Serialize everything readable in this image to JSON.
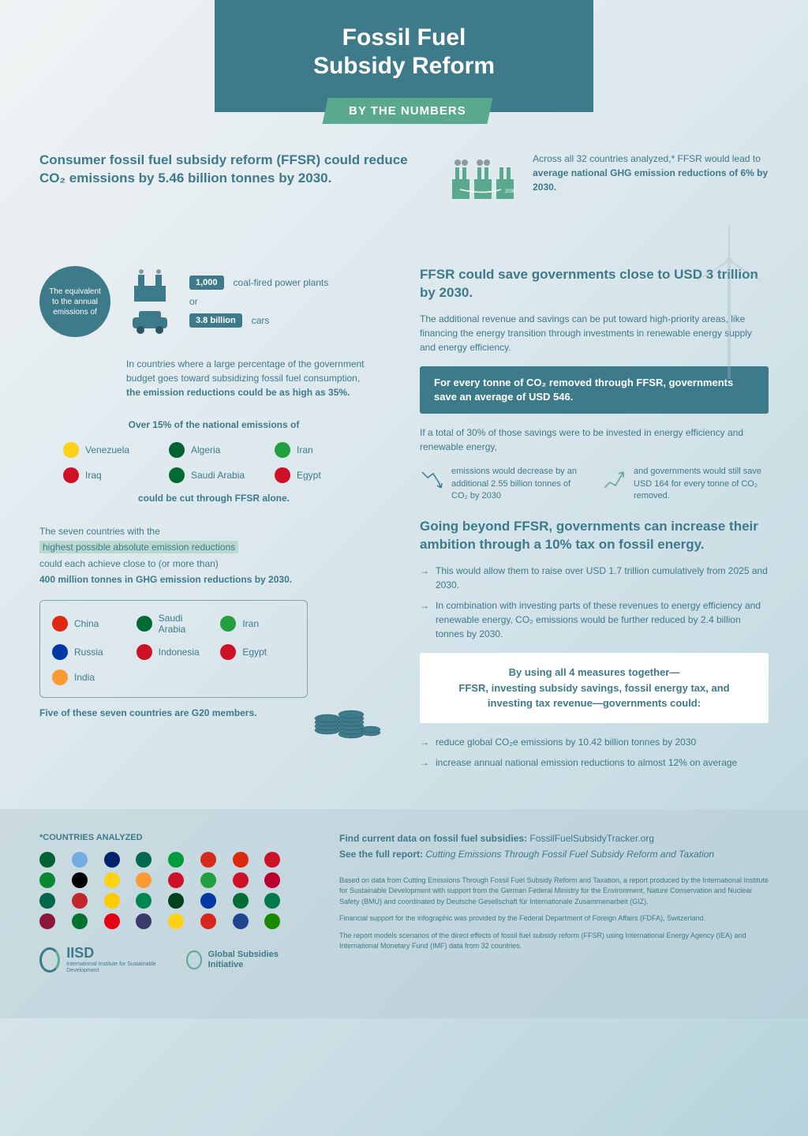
{
  "header": {
    "title_line1": "Fossil Fuel",
    "title_line2": "Subsidy Reform",
    "subtitle": "BY THE NUMBERS"
  },
  "top": {
    "left_headline": "Consumer fossil fuel subsidy reform (FFSR) could reduce CO₂ emissions by 5.46 billion tonnes by 2030.",
    "right_pre": "Across all 32 countries analyzed,* FFSR would lead to",
    "right_bold": "average national GHG emission reductions of 6% by 2030."
  },
  "equiv": {
    "badge": "The equivalent to the annual emissions of",
    "val1": "1,000",
    "label1": "coal-fired power plants",
    "or": "or",
    "val2": "3.8 billion",
    "label2": "cars"
  },
  "note": {
    "pre": "In countries where a large percentage of the government budget goes toward subsidizing fossil fuel consumption, ",
    "bold": "the emission reductions could be as high as 35%."
  },
  "countries15": {
    "title": "Over 15% of the national emissions of",
    "footer": "could be cut through FFSR alone.",
    "items": [
      {
        "name": "Venezuela",
        "color": "#fcd116"
      },
      {
        "name": "Algeria",
        "color": "#006233"
      },
      {
        "name": "Iran",
        "color": "#239f40"
      },
      {
        "name": "Iraq",
        "color": "#ce1126"
      },
      {
        "name": "Saudi Arabia",
        "color": "#006c35"
      },
      {
        "name": "Egypt",
        "color": "#ce1126"
      }
    ]
  },
  "seven": {
    "line1": "The seven countries with the",
    "highlight": "highest possible absolute emission reductions",
    "line2": "could each achieve close to (or more than)",
    "line3": "400 million tonnes in GHG emission reductions by 2030.",
    "footer": "Five of these seven countries are G20 members.",
    "items": [
      {
        "name": "China",
        "color": "#de2910"
      },
      {
        "name": "Saudi Arabia",
        "color": "#006c35"
      },
      {
        "name": "Iran",
        "color": "#239f40"
      },
      {
        "name": "Russia",
        "color": "#0039a6"
      },
      {
        "name": "Indonesia",
        "color": "#ce1126"
      },
      {
        "name": "Egypt",
        "color": "#ce1126"
      },
      {
        "name": "India",
        "color": "#ff9933"
      }
    ]
  },
  "right": {
    "h1": "FFSR could save governments close to USD 3 trillion by 2030.",
    "p1": "The additional revenue and savings can be put toward high-priority areas, like financing the energy transition through investments in renewable energy supply and energy efficiency.",
    "banner1": "For every tonne of CO₂ removed through FFSR, governments save an average of USD 546.",
    "p2": "If a total of 30% of those savings were to be invested in energy efficiency and renewable energy,",
    "split1": "emissions would decrease by an additional 2.55 billion tonnes of CO₂ by 2030",
    "split2": "and governments would still save USD 164 for every tonne of CO₂ removed.",
    "h2": "Going beyond FFSR, governments can increase their ambition through a 10% tax on fossil energy.",
    "bullet1": "This would allow them to raise over USD 1.7 trillion cumulatively from 2025 and 2030.",
    "bullet2": "In combination with investing parts of these revenues to energy efficiency and renewable energy, CO₂ emissions would be further reduced by 2.4 billion tonnes by 2030.",
    "box_line1": "By using all 4 measures together—",
    "box_line2": "FFSR, investing subsidy savings, fossil energy tax, and investing tax revenue—governments could:",
    "bullet3": "reduce global CO₂e emissions by 10.42 billion tonnes by 2030",
    "bullet4": "increase annual national emission reductions to almost 12% on average"
  },
  "footer": {
    "analyzed_title": "*COUNTRIES ANALYZED",
    "flag_colors": [
      "#006233",
      "#74acdf",
      "#012169",
      "#006a4e",
      "#009c3b",
      "#d52b1e",
      "#de2910",
      "#ce1126",
      "#078930",
      "#000000",
      "#fcd116",
      "#ff9933",
      "#ce1126",
      "#239f40",
      "#ce1126",
      "#bc002d",
      "#006847",
      "#c1272d",
      "#fecb00",
      "#008751",
      "#01411c",
      "#0039a6",
      "#006c35",
      "#007a4d",
      "#8d153a",
      "#00732f",
      "#e70013",
      "#3c3b6e",
      "#fcd116",
      "#da251d",
      "#21468b",
      "#198a00"
    ],
    "link1_label": "Find current data on fossil fuel subsidies:",
    "link1_val": "FossilFuelSubsidyTracker.org",
    "link2_label": "See the full report:",
    "link2_val": "Cutting Emissions Through Fossil Fuel Subsidy Reform and Taxation",
    "fine1": "Based on data from Cutting Emissions Through Fossil Fuel Subsidy Reform and Taxation, a report produced by the International Institute for Sustainable Development with support from the German Federal Ministry for the Environment, Nature Conservation and Nuclear Safety (BMU) and coordinated by Deutsche Gesellschaft für Internationale Zusammenarbeit (GIZ).",
    "fine2": "Financial support for the infographic was provided by the Federal Department of Foreign Affairs (FDFA), Switzerland.",
    "fine3": "The report models scenarios of the direct effects of fossil fuel subsidy reform (FFSR) using International Energy Agency (IEA) and International Monetary Fund (IMF) data from 32 countries.",
    "iisd": "IISD",
    "iisd_sub": "International Institute for Sustainable Development",
    "gsi": "Global Subsidies Initiative"
  },
  "colors": {
    "teal": "#3d7a8a",
    "green": "#5aa88e",
    "highlight": "#b8d8d0"
  }
}
